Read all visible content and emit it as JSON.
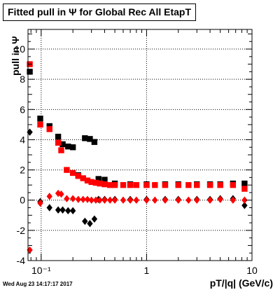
{
  "chart_data": {
    "type": "scatter",
    "title": "Fitted pull in  Ψ  for Global Rec All EtapT",
    "xlabel": "pT/|q| (GeV/c)",
    "ylabel": "pull in  Ψ",
    "x_scale": "log",
    "xlim": [
      0.075,
      10
    ],
    "ylim": [
      -4,
      11.3
    ],
    "grid": true,
    "x_ticks": [
      {
        "v": 0.1,
        "label": "10⁻¹"
      },
      {
        "v": 1,
        "label": "1"
      },
      {
        "v": 10,
        "label": "10"
      }
    ],
    "y_ticks": [
      -4,
      -2,
      0,
      2,
      4,
      6,
      8,
      10
    ],
    "series": [
      {
        "marker": "square",
        "color": "#000000",
        "x": [
          0.078,
          0.098,
          0.12,
          0.145,
          0.16,
          0.18,
          0.2,
          0.225,
          0.26,
          0.29,
          0.32,
          0.35,
          0.4,
          0.5,
          0.7,
          1.0,
          1.5,
          2,
          3,
          4,
          5,
          6.6,
          8.5
        ],
        "y": [
          8.5,
          5.4,
          4.9,
          4.2,
          3.7,
          3.55,
          3.5,
          1.65,
          4.1,
          4.05,
          3.85,
          1.4,
          1.35,
          1.1,
          1.05,
          1.05,
          1.05,
          1.05,
          1.05,
          1.05,
          1.05,
          1.1,
          1.1
        ]
      },
      {
        "marker": "diamond",
        "color": "#000000",
        "x": [
          0.078,
          0.098,
          0.12,
          0.145,
          0.16,
          0.18,
          0.2,
          0.26,
          0.29,
          0.32,
          0.35,
          0.4,
          0.5,
          0.7,
          1.0,
          1.5,
          2,
          3,
          4,
          5,
          6.6,
          8.5
        ],
        "y": [
          4.5,
          -0.1,
          -0.5,
          -0.65,
          -0.65,
          -0.7,
          -0.7,
          -1.4,
          -1.55,
          -1.25,
          0.05,
          0.05,
          0.05,
          0.05,
          0.05,
          0.05,
          0.05,
          0.05,
          0.05,
          0.1,
          0.1,
          -0.35
        ]
      },
      {
        "marker": "square",
        "color": "#ff0000",
        "x": [
          0.078,
          0.098,
          0.12,
          0.145,
          0.155,
          0.175,
          0.2,
          0.225,
          0.25,
          0.275,
          0.3,
          0.33,
          0.36,
          0.4,
          0.45,
          0.5,
          0.6,
          0.7,
          0.8,
          1.0,
          1.2,
          1.5,
          2,
          2.5,
          3,
          4,
          5,
          6.6,
          8.5
        ],
        "y": [
          9.0,
          5.0,
          4.7,
          3.8,
          3.3,
          2.0,
          1.8,
          1.6,
          1.45,
          1.3,
          1.2,
          1.15,
          1.1,
          1.05,
          1.0,
          1.0,
          1.0,
          1.0,
          1.0,
          1.0,
          1.0,
          1.0,
          1.0,
          1.0,
          1.0,
          1.0,
          1.0,
          1.0,
          0.75
        ]
      },
      {
        "marker": "diamond",
        "color": "#ff0000",
        "x": [
          0.078,
          0.098,
          0.12,
          0.145,
          0.155,
          0.175,
          0.2,
          0.225,
          0.25,
          0.275,
          0.3,
          0.33,
          0.36,
          0.4,
          0.45,
          0.5,
          0.6,
          0.7,
          0.8,
          1.0,
          1.2,
          1.5,
          2,
          2.5,
          3,
          4,
          5,
          6.6,
          8.5
        ],
        "y": [
          -3.3,
          -0.2,
          0.25,
          0.45,
          0.4,
          0.1,
          0.1,
          0.05,
          0.05,
          0.05,
          0.0,
          0.0,
          0.0,
          0.0,
          0.0,
          0.0,
          0.0,
          0.0,
          0.0,
          0.0,
          0.0,
          0.0,
          0.0,
          0.0,
          0.0,
          0.0,
          0.05,
          0.0,
          0.0
        ]
      }
    ]
  },
  "datestamp": "Wed Aug 23 14:17:17 2017"
}
